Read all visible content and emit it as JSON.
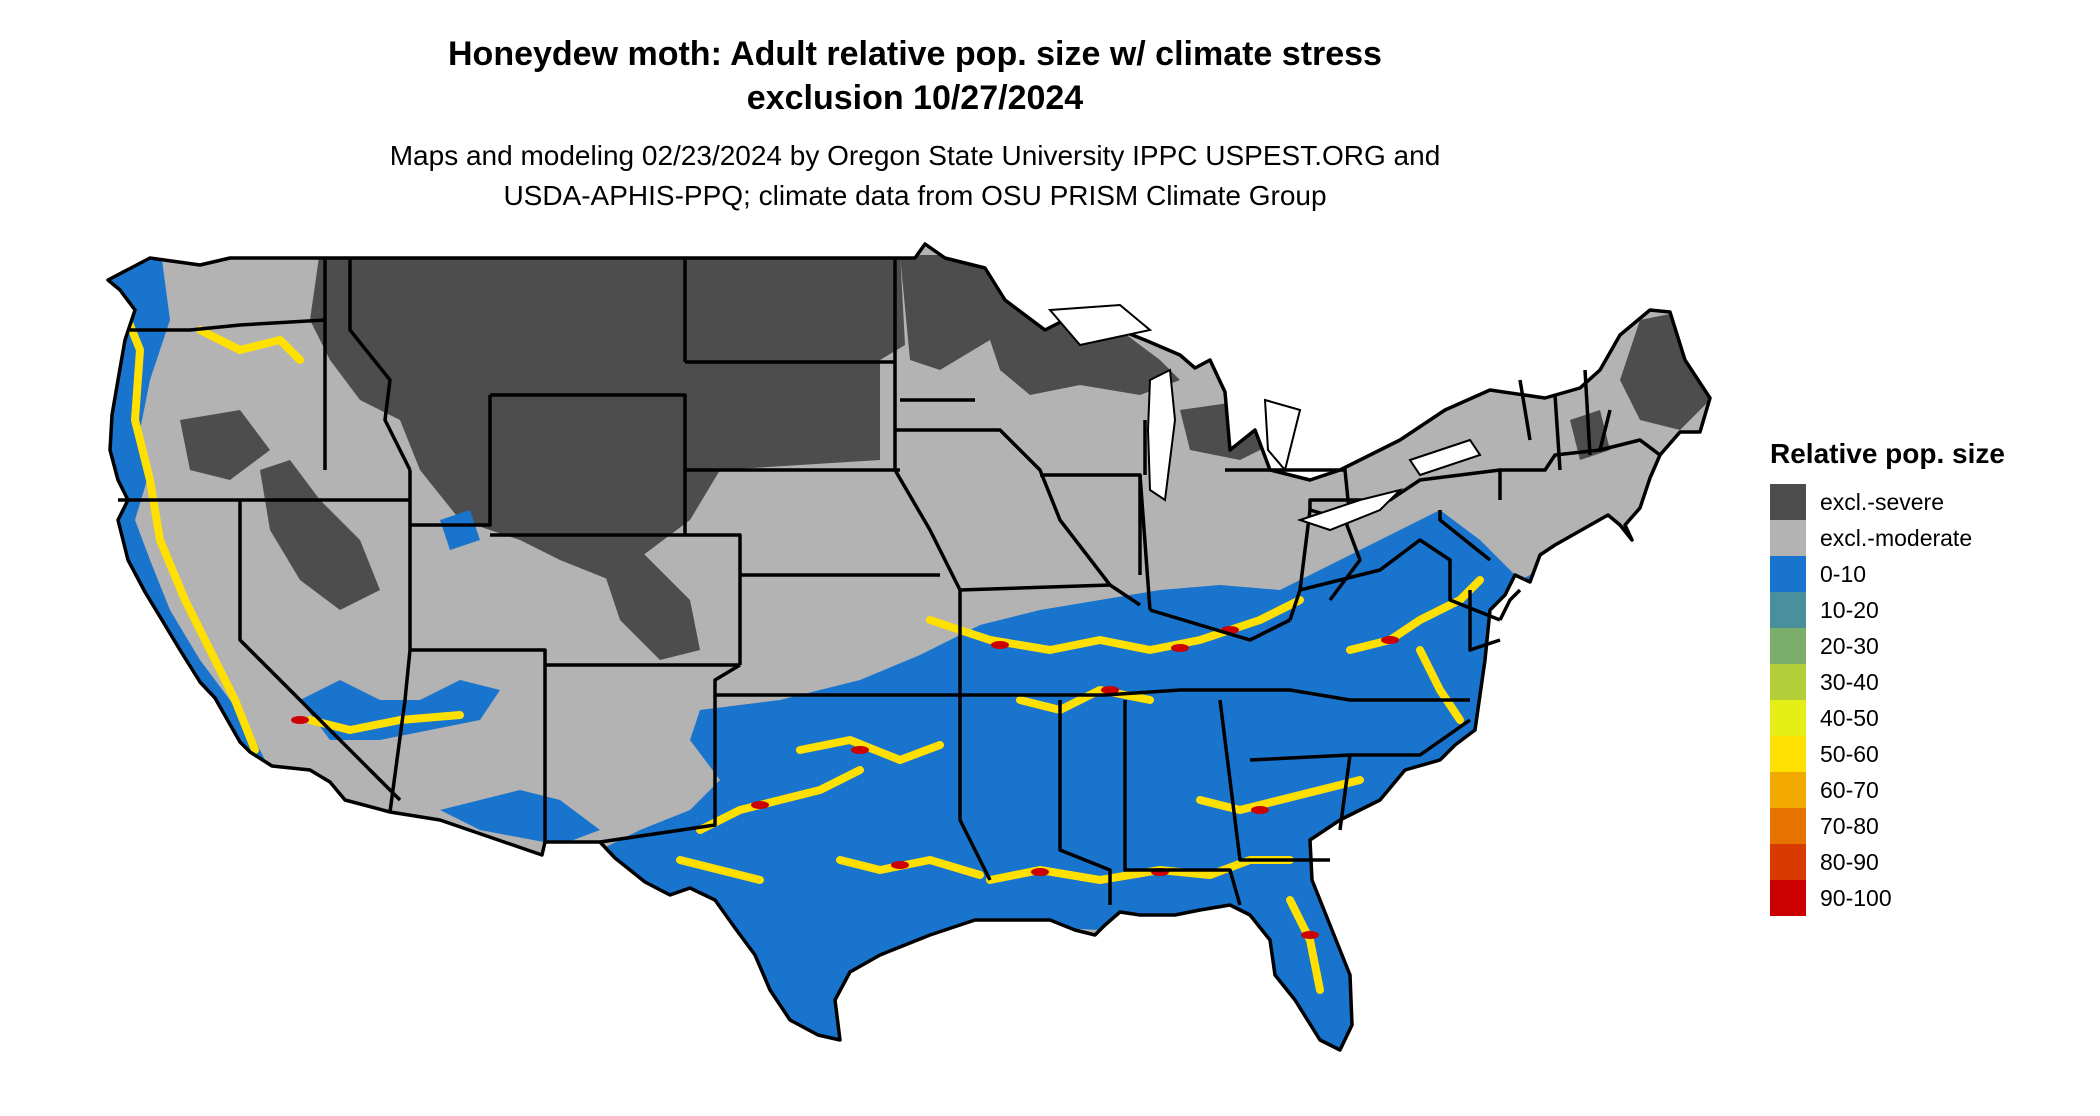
{
  "title": {
    "line1": "Honeydew moth: Adult relative pop. size w/ climate stress",
    "line2": "exclusion 10/27/2024"
  },
  "subtitle": {
    "line1": "Maps and modeling 02/23/2024 by Oregon State University IPPC USPEST.ORG and",
    "line2": "USDA-APHIS-PPQ; climate data from OSU PRISM Climate Group"
  },
  "legend": {
    "title": "Relative pop. size",
    "items": [
      {
        "label": "excl.-severe",
        "color": "#4d4d4d"
      },
      {
        "label": "excl.-moderate",
        "color": "#b3b3b3"
      },
      {
        "label": "0-10",
        "color": "#1874cd"
      },
      {
        "label": "10-20",
        "color": "#4a8f9c"
      },
      {
        "label": "20-30",
        "color": "#7aae6a"
      },
      {
        "label": "30-40",
        "color": "#b2cf3a"
      },
      {
        "label": "40-50",
        "color": "#e5ee15"
      },
      {
        "label": "50-60",
        "color": "#ffe000"
      },
      {
        "label": "60-70",
        "color": "#f2a900"
      },
      {
        "label": "70-80",
        "color": "#e67300"
      },
      {
        "label": "80-90",
        "color": "#d93a00"
      },
      {
        "label": "90-100",
        "color": "#cc0000"
      }
    ]
  },
  "map": {
    "region": "Contiguous United States",
    "colors": {
      "severe": "#4d4d4d",
      "moderate": "#b3b3b3",
      "low": "#1874cd",
      "mid": "#ffe000",
      "high": "#cc0000",
      "borders": "#000000",
      "water": "#ffffff"
    }
  }
}
